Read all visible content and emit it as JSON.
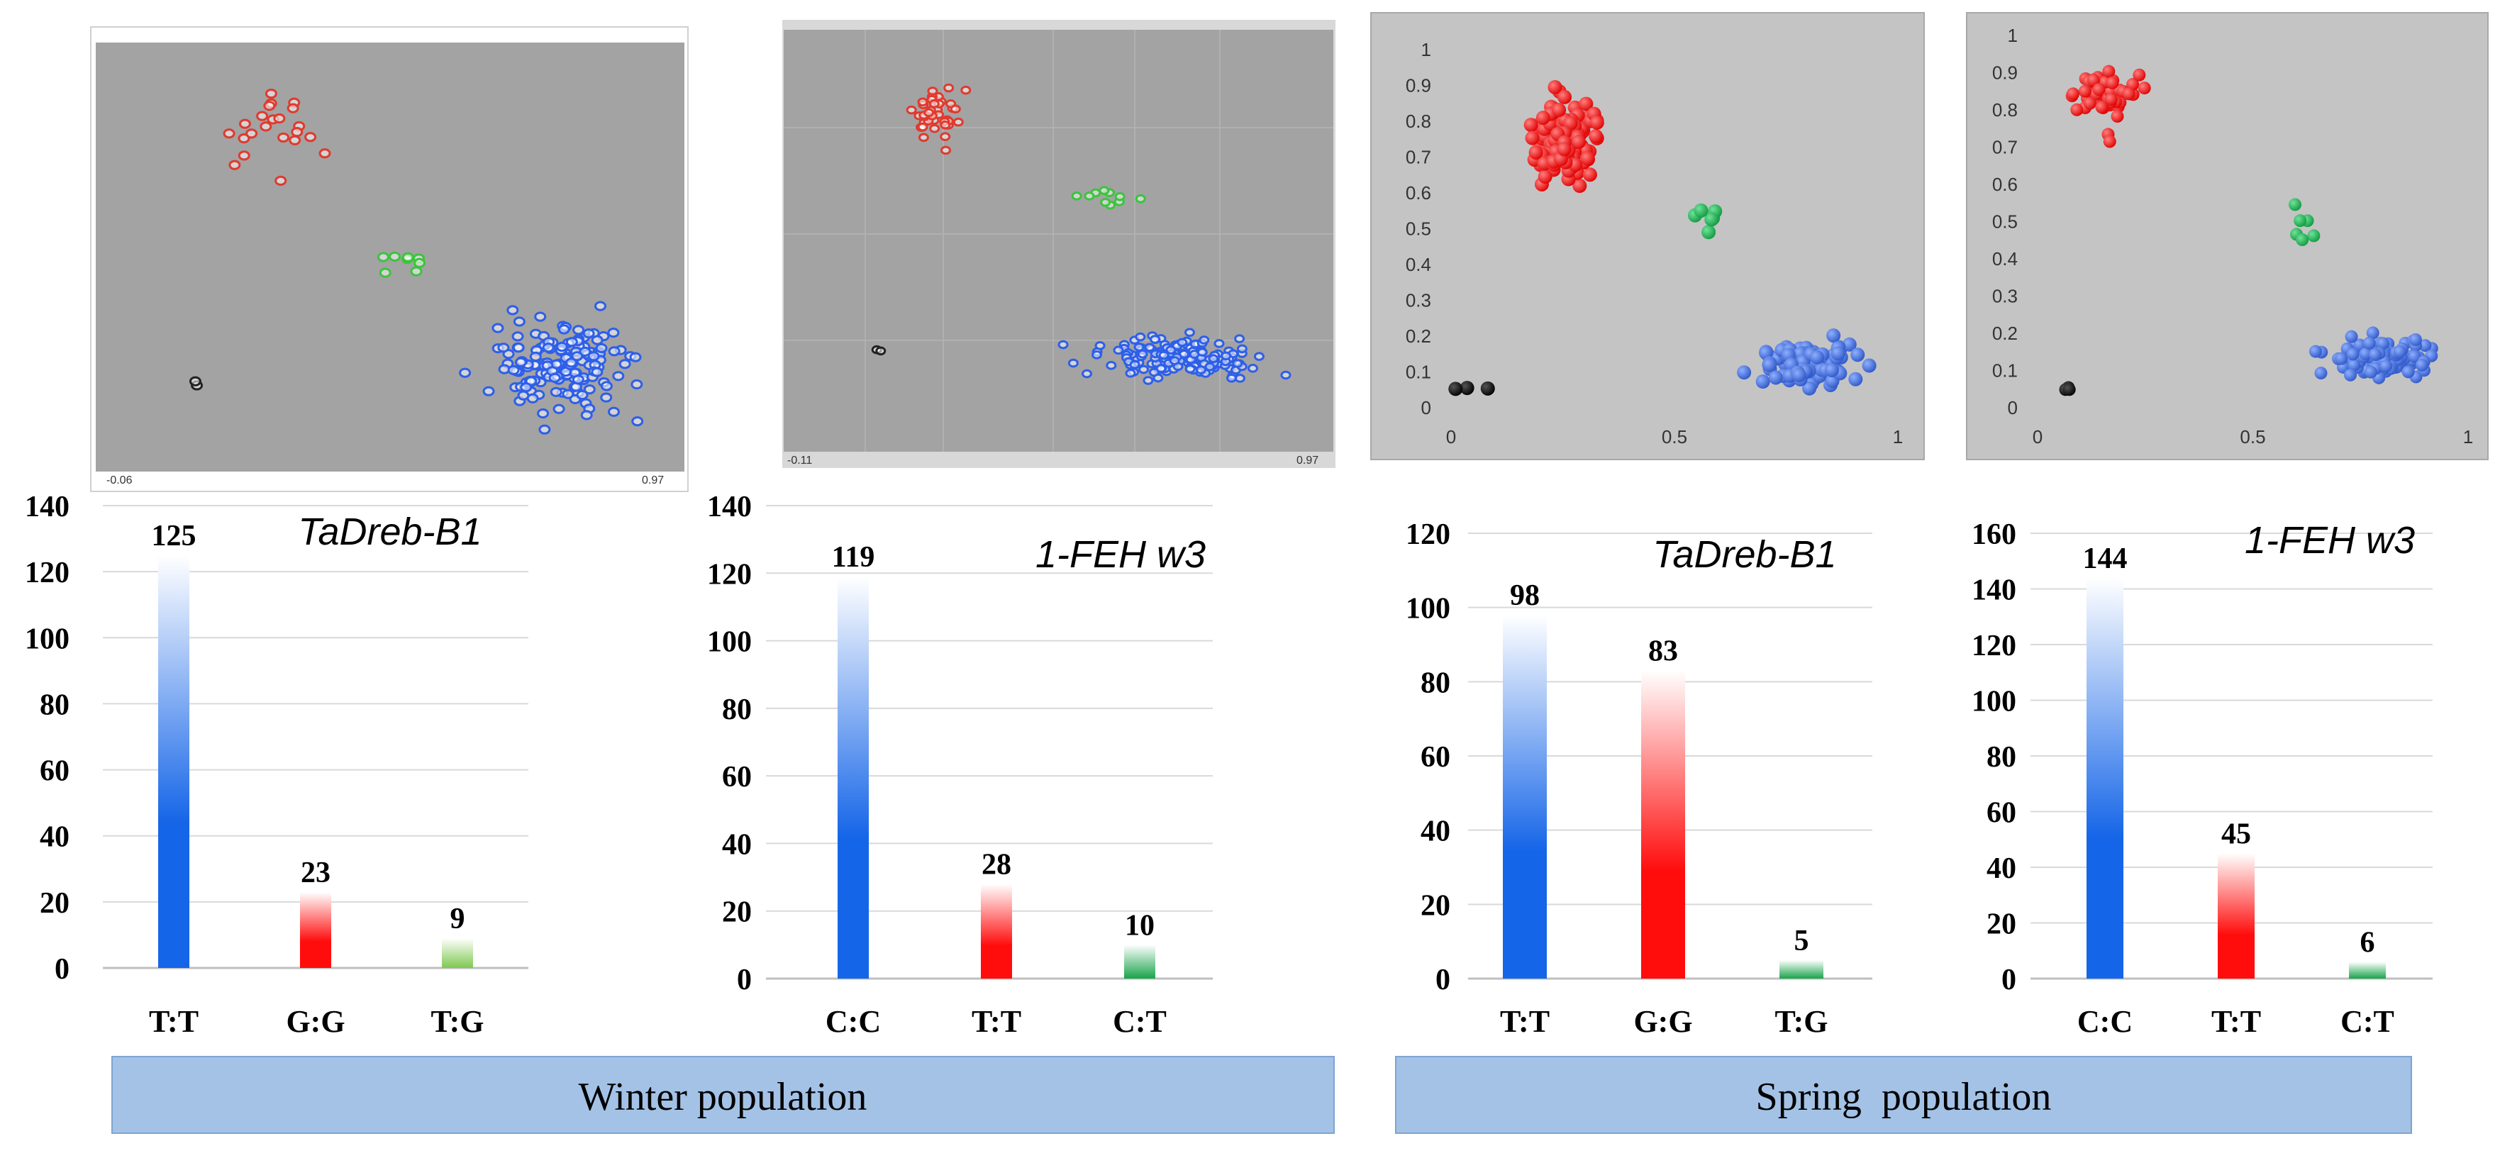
{
  "chart_data": [
    {
      "type": "bar",
      "panel": "winter-1",
      "gene": "TaDreb-B1",
      "categories": [
        "T:T",
        "G:G",
        "T:G"
      ],
      "values": [
        125,
        23,
        9
      ],
      "colors": [
        "#1565e8",
        "#ff0d0d",
        "#7ec850"
      ],
      "yticks": [
        "0",
        "20",
        "40",
        "60",
        "80",
        "100",
        "120",
        "140"
      ],
      "ylim": [
        0,
        140
      ]
    },
    {
      "type": "bar",
      "panel": "winter-2",
      "gene": "1-FEH w3",
      "categories": [
        "C:C",
        "T:T",
        "C:T"
      ],
      "values": [
        119,
        28,
        10
      ],
      "colors": [
        "#1565e8",
        "#ff0d0d",
        "#19a44a"
      ],
      "yticks": [
        "0",
        "20",
        "40",
        "60",
        "80",
        "100",
        "120",
        "140"
      ],
      "ylim": [
        0,
        140
      ]
    },
    {
      "type": "bar",
      "panel": "spring-1",
      "gene": "TaDreb-B1",
      "categories": [
        "T:T",
        "G:G",
        "T:G"
      ],
      "values": [
        98,
        83,
        5
      ],
      "colors": [
        "#1565e8",
        "#ff0d0d",
        "#19a44a"
      ],
      "yticks": [
        "0",
        "20",
        "40",
        "60",
        "80",
        "100",
        "120"
      ],
      "ylim": [
        0,
        120
      ]
    },
    {
      "type": "bar",
      "panel": "spring-2",
      "gene": "1-FEH w3",
      "categories": [
        "C:C",
        "T:T",
        "C:T"
      ],
      "values": [
        144,
        45,
        6
      ],
      "colors": [
        "#1565e8",
        "#ff0d0d",
        "#19a44a"
      ],
      "yticks": [
        "0",
        "20",
        "40",
        "60",
        "80",
        "100",
        "120",
        "140",
        "160"
      ],
      "ylim": [
        0,
        160
      ]
    },
    {
      "type": "scatter",
      "panel": "winter-scatter-1",
      "corner_labels": [
        "-0.06",
        "0.97"
      ],
      "clusters": [
        {
          "name": "red",
          "color": "#e03a2f",
          "n": 22,
          "center": [
            0.28,
            0.8
          ],
          "spread": [
            0.08,
            0.09
          ]
        },
        {
          "name": "green",
          "color": "#3cc43c",
          "n": 8,
          "center": [
            0.53,
            0.48
          ],
          "spread": [
            0.05,
            0.03
          ]
        },
        {
          "name": "blue",
          "color": "#2e5fe8",
          "n": 150,
          "center": [
            0.8,
            0.22
          ],
          "spread": [
            0.11,
            0.1
          ]
        },
        {
          "name": "black",
          "color": "#222222",
          "n": 2,
          "center": [
            0.15,
            0.17
          ],
          "spread": [
            0.02,
            0.02
          ]
        }
      ]
    },
    {
      "type": "scatter",
      "panel": "winter-scatter-2",
      "corner_labels": [
        "-0.11",
        "0.97"
      ],
      "clusters": [
        {
          "name": "red",
          "color": "#e03a2f",
          "n": 40,
          "center": [
            0.27,
            0.82
          ],
          "spread": [
            0.04,
            0.07
          ]
        },
        {
          "name": "green",
          "color": "#3cc43c",
          "n": 10,
          "center": [
            0.6,
            0.6
          ],
          "spread": [
            0.06,
            0.03
          ]
        },
        {
          "name": "blue",
          "color": "#2e5fe8",
          "n": 150,
          "center": [
            0.73,
            0.2
          ],
          "spread": [
            0.13,
            0.05
          ]
        },
        {
          "name": "black",
          "color": "#222222",
          "n": 2,
          "center": [
            0.16,
            0.22
          ],
          "spread": [
            0.01,
            0.05
          ]
        }
      ]
    },
    {
      "type": "scatter",
      "panel": "spring-scatter-1",
      "x_ticks": [
        "0",
        "0.5",
        "1"
      ],
      "y_ticks": [
        "0",
        "0.1",
        "0.2",
        "0.3",
        "0.4",
        "0.5",
        "0.6",
        "0.7",
        "0.8",
        "0.9",
        "1"
      ],
      "xlim": [
        0,
        1
      ],
      "ylim": [
        0,
        1
      ],
      "clusters": [
        {
          "name": "red",
          "color": "#f21414",
          "n": 110,
          "center": [
            0.25,
            0.76
          ],
          "spread": [
            0.08,
            0.1
          ]
        },
        {
          "name": "green",
          "color": "#1eb24e",
          "n": 6,
          "center": [
            0.58,
            0.51
          ],
          "spread": [
            0.03,
            0.07
          ]
        },
        {
          "name": "blue",
          "color": "#3a69d6",
          "n": 110,
          "center": [
            0.8,
            0.12
          ],
          "spread": [
            0.09,
            0.05
          ]
        },
        {
          "name": "black",
          "color": "#000000",
          "n": 3,
          "center": [
            0.05,
            0.05
          ],
          "spread": [
            0.03,
            0.02
          ]
        }
      ]
    },
    {
      "type": "scatter",
      "panel": "spring-scatter-2",
      "x_ticks": [
        "0",
        "0.5",
        "1"
      ],
      "y_ticks": [
        "0",
        "0.1",
        "0.2",
        "0.3",
        "0.4",
        "0.5",
        "0.6",
        "0.7",
        "0.8",
        "0.9",
        "1"
      ],
      "xlim": [
        0,
        1
      ],
      "ylim": [
        0,
        1
      ],
      "clusters": [
        {
          "name": "red",
          "color": "#f21414",
          "n": 45,
          "center": [
            0.15,
            0.83
          ],
          "spread": [
            0.08,
            0.07
          ]
        },
        {
          "name": "green",
          "color": "#1eb24e",
          "n": 6,
          "center": [
            0.62,
            0.51
          ],
          "spread": [
            0.03,
            0.06
          ]
        },
        {
          "name": "blue",
          "color": "#3a69d6",
          "n": 110,
          "center": [
            0.8,
            0.13
          ],
          "spread": [
            0.1,
            0.05
          ]
        },
        {
          "name": "black",
          "color": "#000000",
          "n": 3,
          "center": [
            0.06,
            0.05
          ],
          "spread": [
            0.02,
            0.02
          ]
        }
      ]
    }
  ],
  "footer": {
    "winter": "Winter population",
    "spring": "Spring  population",
    "band_color": "#a3c2e6"
  }
}
